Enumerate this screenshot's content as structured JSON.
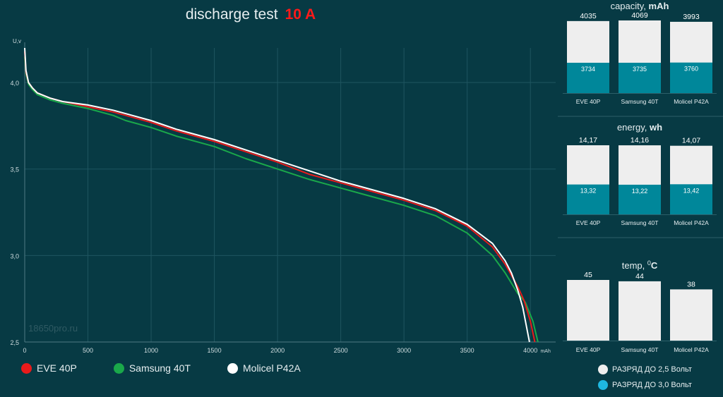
{
  "title": {
    "text": "discharge test",
    "highlight": "10 A",
    "highlight_color": "#ff1a1a"
  },
  "watermark": "18650pro.ru",
  "colors": {
    "background": "#073a44",
    "grid": "#1f5560",
    "eve": "#e81b1b",
    "samsung": "#1aa84a",
    "molicel": "#ffffff",
    "bar_full": "#eeeeee",
    "bar_cutoff": "#00879a",
    "cutoff_legend": "#1eb8e0"
  },
  "legend": [
    {
      "label": "EVE 40P",
      "color": "#e81b1b"
    },
    {
      "label": "Samsung 40T",
      "color": "#1aa84a"
    },
    {
      "label": "Molicel P42A",
      "color": "#ffffff"
    }
  ],
  "right_legend": [
    {
      "label": "РАЗРЯД ДО 2,5 Вольт",
      "color": "#eeeeee"
    },
    {
      "label": "РАЗРЯД ДО 3,0 Вольт",
      "color": "#1eb8e0"
    }
  ],
  "chart_data": [
    {
      "type": "line",
      "title": "discharge test 10 A",
      "xlabel": "mAh",
      "ylabel": "U,v",
      "xlim": [
        0,
        4200
      ],
      "ylim": [
        2.5,
        4.2
      ],
      "xticks": [
        0,
        500,
        1000,
        1500,
        2000,
        2500,
        3000,
        3500,
        4000
      ],
      "xtick_labels": [
        "0",
        "500",
        "1000",
        "1500",
        "2000",
        "2500",
        "3000",
        "3500",
        "4000"
      ],
      "yticks": [
        2.5,
        3.0,
        3.5,
        4.0
      ],
      "ytick_labels": [
        "2,5",
        "3,0",
        "3,5",
        "4,0"
      ],
      "grid": true,
      "legend_position": "bottom-left",
      "series": [
        {
          "name": "Samsung 40T",
          "color": "#1aa84a",
          "x": [
            0,
            10,
            30,
            60,
            100,
            200,
            300,
            500,
            700,
            800,
            1000,
            1200,
            1500,
            1750,
            2000,
            2250,
            2500,
            2750,
            3000,
            3250,
            3500,
            3700,
            3800,
            3900,
            3960,
            4020,
            4060
          ],
          "y": [
            4.15,
            4.05,
            3.99,
            3.96,
            3.93,
            3.9,
            3.88,
            3.85,
            3.81,
            3.78,
            3.74,
            3.69,
            3.63,
            3.56,
            3.5,
            3.44,
            3.39,
            3.34,
            3.29,
            3.23,
            3.13,
            3.0,
            2.9,
            2.78,
            2.73,
            2.62,
            2.5
          ]
        },
        {
          "name": "EVE 40P",
          "color": "#e81b1b",
          "x": [
            0,
            10,
            30,
            60,
            100,
            200,
            300,
            500,
            700,
            800,
            1000,
            1200,
            1500,
            1750,
            2000,
            2250,
            2500,
            2750,
            3000,
            3250,
            3500,
            3700,
            3800,
            3900,
            3950,
            4000,
            4035
          ],
          "y": [
            4.18,
            4.06,
            4.0,
            3.97,
            3.94,
            3.91,
            3.89,
            3.86,
            3.83,
            3.81,
            3.77,
            3.72,
            3.66,
            3.6,
            3.54,
            3.47,
            3.42,
            3.37,
            3.32,
            3.26,
            3.17,
            3.05,
            2.95,
            2.82,
            2.74,
            2.62,
            2.5
          ]
        },
        {
          "name": "Molicel P42A",
          "color": "#ffffff",
          "x": [
            0,
            10,
            30,
            60,
            100,
            200,
            300,
            500,
            700,
            800,
            1000,
            1200,
            1500,
            1750,
            2000,
            2250,
            2500,
            2750,
            3000,
            3250,
            3500,
            3700,
            3800,
            3850,
            3900,
            3940,
            3993
          ],
          "y": [
            4.2,
            4.07,
            4.0,
            3.97,
            3.94,
            3.91,
            3.89,
            3.87,
            3.84,
            3.82,
            3.78,
            3.73,
            3.67,
            3.61,
            3.55,
            3.49,
            3.43,
            3.38,
            3.33,
            3.27,
            3.18,
            3.07,
            2.97,
            2.9,
            2.8,
            2.7,
            2.5
          ]
        }
      ]
    },
    {
      "type": "bar",
      "title": "capacity, mAh",
      "categories": [
        "EVE 40P",
        "Samsung 40T",
        "Molicel P42A"
      ],
      "ylim": [
        0,
        4069
      ],
      "series": [
        {
          "name": "РАЗРЯД ДО 2,5 Вольт",
          "values": [
            4035,
            4069,
            3993
          ],
          "labels": [
            "4035",
            "4069",
            "3993"
          ]
        },
        {
          "name": "РАЗРЯД ДО 3,0 Вольт",
          "values": [
            3734,
            3735,
            3760
          ],
          "labels": [
            "3734",
            "3735",
            "3760"
          ]
        }
      ]
    },
    {
      "type": "bar",
      "title": "energy, wh",
      "categories": [
        "EVE 40P",
        "Samsung 40T",
        "Molicel P42A"
      ],
      "ylim": [
        0,
        14.17
      ],
      "series": [
        {
          "name": "РАЗРЯД ДО 2,5 Вольт",
          "values": [
            14.17,
            14.16,
            14.07
          ],
          "labels": [
            "14,17",
            "14,16",
            "14,07"
          ]
        },
        {
          "name": "РАЗРЯД ДО 3,0 Вольт",
          "values": [
            13.32,
            13.22,
            13.42
          ],
          "labels": [
            "13,32",
            "13,22",
            "13,42"
          ]
        }
      ]
    },
    {
      "type": "bar",
      "title": "temp, °C",
      "categories": [
        "EVE 40P",
        "Samsung 40T",
        "Molicel P42A"
      ],
      "ylim": [
        0,
        45
      ],
      "series": [
        {
          "name": "temp",
          "values": [
            45,
            44,
            38
          ],
          "labels": [
            "45",
            "44",
            "38"
          ]
        }
      ]
    }
  ],
  "panel_titles": [
    {
      "plain": "capacity, ",
      "bold": "mAh"
    },
    {
      "plain": "energy, ",
      "bold": "wh"
    },
    {
      "plain": "temp, ",
      "sup": "0",
      "bold": "C"
    }
  ]
}
